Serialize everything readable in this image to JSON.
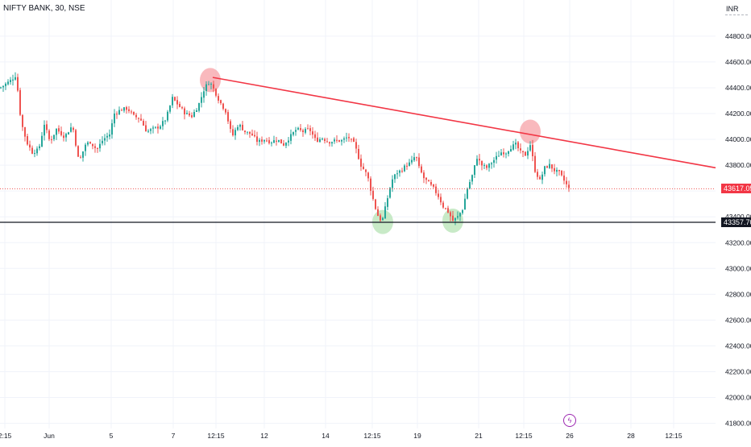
{
  "header": {
    "symbol": "NIFTY BANK, 30, NSE",
    "currency": "INR"
  },
  "colors": {
    "up": "#26a69a",
    "down": "#ef5350",
    "trendline": "#f23645",
    "support": "#131722",
    "grid": "#f0f3fa",
    "axis_text": "#131722",
    "marker_top": "#f7a1a7",
    "marker_bottom": "#b6e3b4",
    "last_price_tag": "#f23645",
    "support_tag": "#131722"
  },
  "price_tags": {
    "last_price": "43617.05",
    "support_level": "43357.70"
  },
  "badge": {
    "icon": "lightning-icon",
    "symbol": "ϟ"
  },
  "chart_data": {
    "type": "candlestick",
    "symbol": "NIFTY BANK",
    "interval": "30",
    "exchange": "NSE",
    "y_axis": {
      "range": [
        41760,
        45080
      ],
      "ticks": [
        "44800.00",
        "44600.00",
        "44400.00",
        "44200.00",
        "44000.00",
        "43800.00",
        "43600.00",
        "43400.00",
        "43200.00",
        "43000.00",
        "42800.00",
        "42600.00",
        "42400.00",
        "42200.00",
        "42000.00",
        "41800.00"
      ]
    },
    "x_axis": {
      "ticks": [
        "2:15",
        "Jun",
        "5",
        "7",
        "12:15",
        "12",
        "14",
        "12:15",
        "19",
        "21",
        "12:15",
        "26",
        "28",
        "12:15"
      ]
    },
    "grid": true,
    "close_path": [
      [
        0,
        44400
      ],
      [
        5,
        44420
      ],
      [
        14,
        44460
      ],
      [
        20,
        44500
      ],
      [
        26,
        44140
      ],
      [
        33,
        43980
      ],
      [
        40,
        43900
      ],
      [
        48,
        43920
      ],
      [
        55,
        44120
      ],
      [
        62,
        43980
      ],
      [
        70,
        44080
      ],
      [
        80,
        44020
      ],
      [
        90,
        44110
      ],
      [
        98,
        43820
      ],
      [
        106,
        43960
      ],
      [
        112,
        43980
      ],
      [
        120,
        43920
      ],
      [
        128,
        44000
      ],
      [
        136,
        44040
      ],
      [
        142,
        44200
      ],
      [
        150,
        44230
      ],
      [
        158,
        44240
      ],
      [
        166,
        44180
      ],
      [
        174,
        44160
      ],
      [
        182,
        44060
      ],
      [
        190,
        44080
      ],
      [
        198,
        44100
      ],
      [
        206,
        44160
      ],
      [
        214,
        44320
      ],
      [
        222,
        44260
      ],
      [
        230,
        44200
      ],
      [
        238,
        44180
      ],
      [
        246,
        44260
      ],
      [
        254,
        44400
      ],
      [
        260,
        44450
      ],
      [
        266,
        44380
      ],
      [
        272,
        44300
      ],
      [
        280,
        44220
      ],
      [
        288,
        44020
      ],
      [
        296,
        44120
      ],
      [
        304,
        44060
      ],
      [
        312,
        44040
      ],
      [
        320,
        43980
      ],
      [
        328,
        44000
      ],
      [
        336,
        43980
      ],
      [
        344,
        44000
      ],
      [
        352,
        43960
      ],
      [
        360,
        44020
      ],
      [
        368,
        44080
      ],
      [
        376,
        44060
      ],
      [
        384,
        44080
      ],
      [
        392,
        43990
      ],
      [
        400,
        44010
      ],
      [
        408,
        43980
      ],
      [
        416,
        43990
      ],
      [
        424,
        43990
      ],
      [
        432,
        44020
      ],
      [
        440,
        43960
      ],
      [
        448,
        43800
      ],
      [
        456,
        43720
      ],
      [
        462,
        43560
      ],
      [
        468,
        43420
      ],
      [
        474,
        43360
      ],
      [
        480,
        43520
      ],
      [
        486,
        43680
      ],
      [
        492,
        43740
      ],
      [
        498,
        43760
      ],
      [
        504,
        43800
      ],
      [
        510,
        43820
      ],
      [
        516,
        43880
      ],
      [
        520,
        43780
      ],
      [
        526,
        43700
      ],
      [
        532,
        43660
      ],
      [
        538,
        43620
      ],
      [
        544,
        43560
      ],
      [
        550,
        43480
      ],
      [
        556,
        43440
      ],
      [
        562,
        43370
      ],
      [
        568,
        43400
      ],
      [
        574,
        43460
      ],
      [
        580,
        43620
      ],
      [
        586,
        43720
      ],
      [
        592,
        43860
      ],
      [
        598,
        43800
      ],
      [
        604,
        43780
      ],
      [
        610,
        43820
      ],
      [
        616,
        43860
      ],
      [
        622,
        43900
      ],
      [
        628,
        43900
      ],
      [
        634,
        43940
      ],
      [
        640,
        43960
      ],
      [
        646,
        43900
      ],
      [
        652,
        43880
      ],
      [
        658,
        43960
      ],
      [
        664,
        43760
      ],
      [
        670,
        43680
      ],
      [
        676,
        43780
      ],
      [
        682,
        43800
      ],
      [
        688,
        43760
      ],
      [
        694,
        43740
      ],
      [
        700,
        43680
      ],
      [
        706,
        43617
      ]
    ],
    "annotations": {
      "resistance_trendline": {
        "from_price": 44480,
        "to_price": 43780
      },
      "support_line": {
        "price": 43357.7
      },
      "last_price": 43617.05,
      "markers": [
        {
          "kind": "high",
          "price": 44460
        },
        {
          "kind": "high",
          "price": 44060
        },
        {
          "kind": "low",
          "price": 43360
        },
        {
          "kind": "low",
          "price": 43370
        }
      ]
    }
  }
}
